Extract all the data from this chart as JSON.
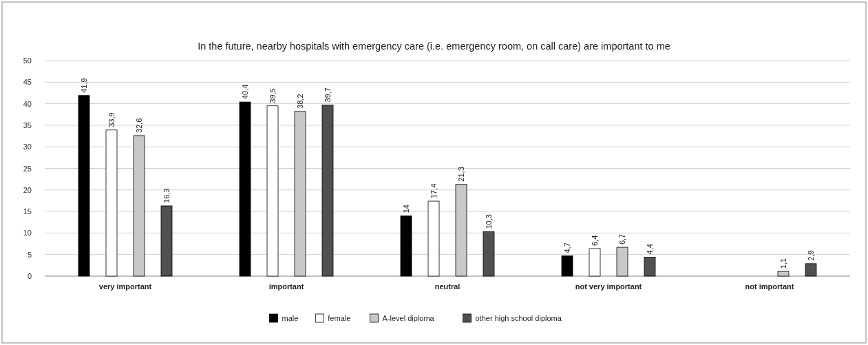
{
  "chart_data": {
    "type": "bar",
    "title": "In the future, nearby hospitals with emergency care (i.e. emergency room, on call care) are important to me",
    "categories": [
      "very important",
      "important",
      "neutral",
      "not very important",
      "not important"
    ],
    "series": [
      {
        "name": "male",
        "color": "#000000",
        "values": [
          41.9,
          40.4,
          14,
          4.7,
          null
        ],
        "value_labels": [
          "41,9",
          "40,4",
          "14",
          "4,7",
          null
        ]
      },
      {
        "name": "female",
        "color": "#ffffff",
        "values": [
          33.9,
          39.5,
          17.4,
          6.4,
          null
        ],
        "value_labels": [
          "33,9",
          "39,5",
          "17,4",
          "6,4",
          null
        ]
      },
      {
        "name": "A-level diploma",
        "color": "#c8c8c8",
        "values": [
          32.6,
          38.2,
          21.3,
          6.7,
          1.1
        ],
        "value_labels": [
          "32,6",
          "38,2",
          "21,3",
          "6,7",
          "1,1"
        ]
      },
      {
        "name": "other high school diploma",
        "color": "#505050",
        "values": [
          16.3,
          39.7,
          10.3,
          4.4,
          2.9
        ],
        "value_labels": [
          "16,3",
          "39,7",
          "10,3",
          "4,4",
          "2,9"
        ]
      }
    ],
    "ylim": [
      0,
      50
    ],
    "yticks": [
      0,
      5,
      10,
      15,
      20,
      25,
      30,
      35,
      40,
      45,
      50
    ],
    "grid": "y",
    "legend": "bottom"
  }
}
